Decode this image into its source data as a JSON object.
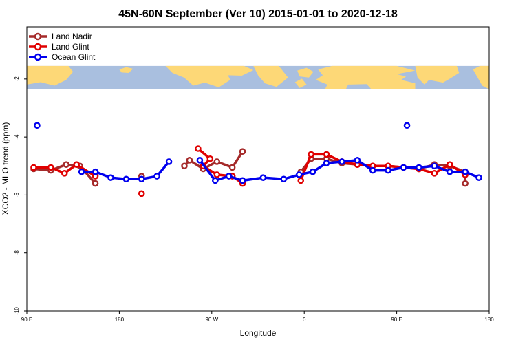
{
  "chart_data": {
    "type": "line",
    "title": "45N-60N September (Ver 10)   2015-01-01 to 2020-12-18",
    "xlabel": "Longitude",
    "ylabel": "XCO2 - MLO trend (ppm)",
    "xlim": [
      -90,
      180
    ],
    "ylim": [
      -10,
      -0.2
    ],
    "x_ticks": [
      {
        "value": -90,
        "label": "90 E"
      },
      {
        "value": -36,
        "label": "180"
      },
      {
        "value": 18,
        "label": "90 W"
      },
      {
        "value": 72,
        "label": "0"
      },
      {
        "value": 126,
        "label": "90 E"
      },
      {
        "value": 180,
        "label": "180"
      }
    ],
    "y_ticks": [
      {
        "value": -2,
        "label": "-2"
      },
      {
        "value": -4,
        "label": "-4"
      },
      {
        "value": -6,
        "label": "-6"
      },
      {
        "value": -8,
        "label": "-8"
      },
      {
        "value": -10,
        "label": "-10"
      }
    ],
    "map_strip": {
      "y_range": [
        -1.55,
        -2.35
      ],
      "ocean_color": "#a9bfdf",
      "land_color": "#fdd877"
    },
    "series": [
      {
        "name": "Land Nadir",
        "color": "#a52a2a",
        "segments": [
          [
            [
              -86,
              -5.1
            ],
            [
              -76,
              -5.15
            ],
            [
              -67,
              -4.95
            ],
            [
              -59,
              -5.0
            ],
            [
              -50,
              -5.6
            ]
          ],
          [
            [
              -23,
              -5.35
            ]
          ],
          [
            [
              2,
              -5.0
            ],
            [
              5,
              -4.8
            ],
            [
              13,
              -5.1
            ],
            [
              21,
              -4.85
            ],
            [
              30,
              -5.05
            ],
            [
              36,
              -4.5
            ]
          ],
          [
            [
              70,
              -5.2
            ],
            [
              76,
              -4.75
            ],
            [
              85,
              -4.75
            ],
            [
              94,
              -4.9
            ],
            [
              103,
              -4.95
            ],
            [
              112,
              -5.0
            ],
            [
              121,
              -5.0
            ],
            [
              130,
              -5.05
            ],
            [
              139,
              -5.1
            ],
            [
              148,
              -4.95
            ],
            [
              157,
              -5.0
            ],
            [
              166,
              -5.2
            ],
            [
              166,
              -5.6
            ]
          ]
        ]
      },
      {
        "name": "Land Glint",
        "color": "#e00000",
        "segments": [
          [
            [
              -86,
              -5.05
            ],
            [
              -76,
              -5.05
            ],
            [
              -68,
              -5.25
            ],
            [
              -61,
              -4.95
            ],
            [
              -50,
              -5.35
            ]
          ],
          [
            [
              -23,
              -5.95
            ]
          ],
          [
            [
              10,
              -4.4
            ],
            [
              17,
              -4.75
            ],
            [
              13,
              -5.0
            ],
            [
              21,
              -5.3
            ],
            [
              30,
              -5.35
            ],
            [
              36,
              -5.6
            ]
          ],
          [
            [
              70,
              -5.5
            ],
            [
              76,
              -4.6
            ],
            [
              85,
              -4.6
            ],
            [
              94,
              -4.85
            ],
            [
              103,
              -4.95
            ],
            [
              112,
              -5.0
            ],
            [
              121,
              -5.0
            ],
            [
              130,
              -5.05
            ],
            [
              139,
              -5.1
            ],
            [
              148,
              -5.25
            ],
            [
              157,
              -4.95
            ],
            [
              166,
              -5.3
            ]
          ]
        ]
      },
      {
        "name": "Ocean Glint",
        "color": "#0000ee",
        "segments": [
          [
            [
              -84,
              -3.6
            ]
          ],
          [
            [
              -58,
              -5.2
            ],
            [
              -50,
              -5.2
            ],
            [
              -41,
              -5.4
            ],
            [
              -32,
              -5.45
            ],
            [
              -23,
              -5.45
            ],
            [
              -14,
              -5.35
            ],
            [
              -7,
              -4.85
            ]
          ],
          [
            [
              11,
              -4.8
            ],
            [
              20,
              -5.5
            ],
            [
              28,
              -5.35
            ],
            [
              36,
              -5.5
            ],
            [
              48,
              -5.4
            ],
            [
              60,
              -5.45
            ],
            [
              69,
              -5.3
            ],
            [
              77,
              -5.2
            ],
            [
              85,
              -4.9
            ],
            [
              94,
              -4.85
            ],
            [
              103,
              -4.8
            ],
            [
              112,
              -5.15
            ],
            [
              121,
              -5.15
            ],
            [
              130,
              -5.05
            ],
            [
              139,
              -5.05
            ],
            [
              148,
              -5.0
            ],
            [
              157,
              -5.2
            ],
            [
              166,
              -5.2
            ],
            [
              174,
              -5.4
            ]
          ],
          [
            [
              132,
              -3.6
            ]
          ]
        ]
      }
    ],
    "legend_position": "top-left"
  }
}
